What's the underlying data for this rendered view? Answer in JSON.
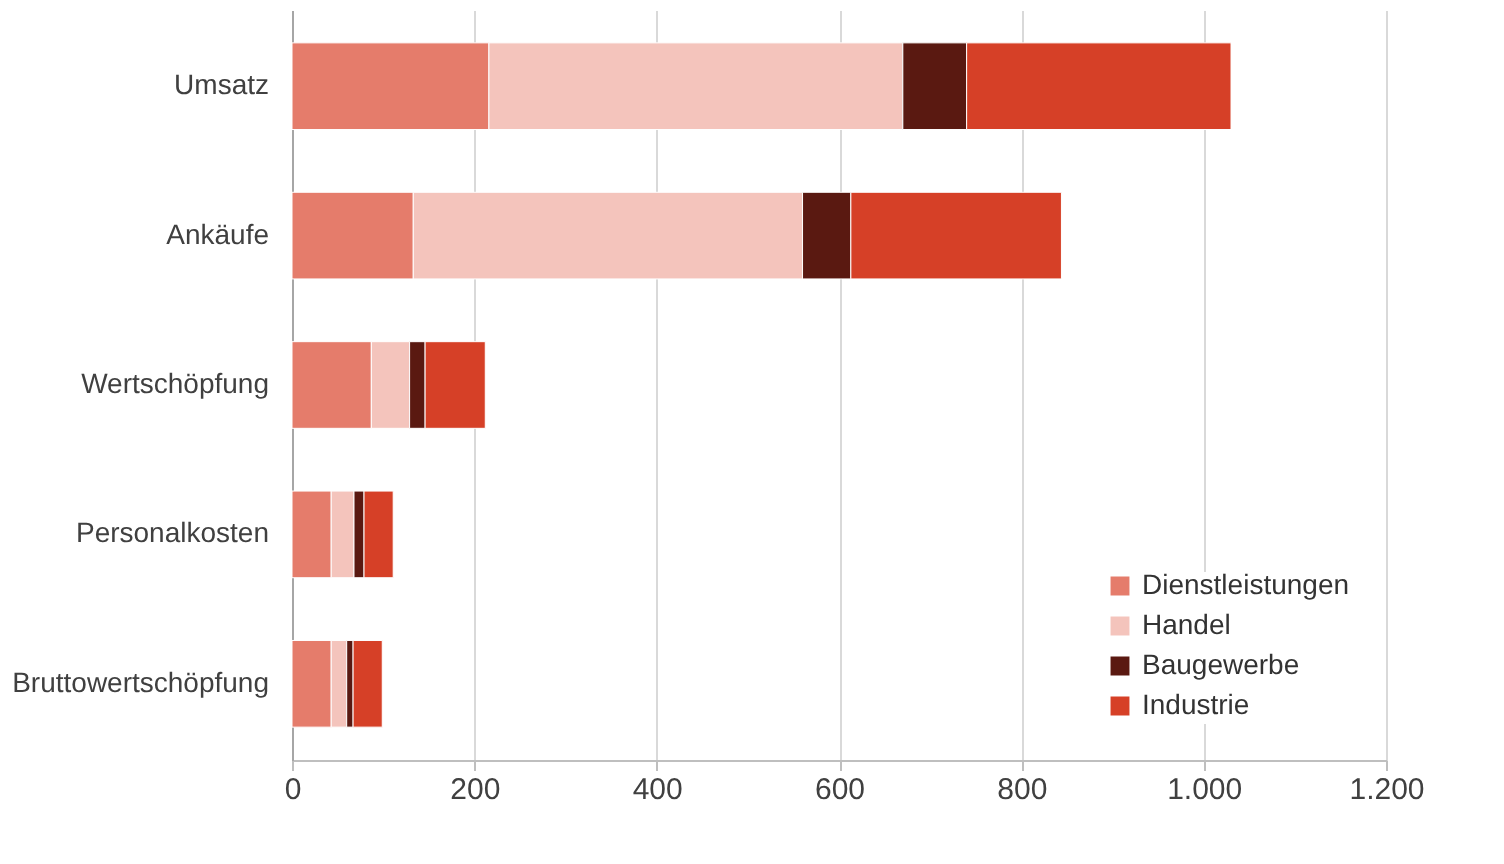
{
  "chart_data": {
    "type": "bar",
    "orientation": "horizontal",
    "stacked": true,
    "categories": [
      "Umsatz",
      "Ankäufe",
      "Wertschöpfung",
      "Personalkosten",
      "Bruttowertschöpfung"
    ],
    "series": [
      {
        "name": "Dienstleistungen",
        "color": "#e57c6b",
        "values": [
          216,
          133,
          87,
          43,
          43
        ]
      },
      {
        "name": "Handel",
        "color": "#f4c4bc",
        "values": [
          454,
          427,
          42,
          25,
          17
        ]
      },
      {
        "name": "Baugewerbe",
        "color": "#5a1911",
        "values": [
          70,
          53,
          17,
          11,
          7
        ]
      },
      {
        "name": "Industrie",
        "color": "#d64027",
        "values": [
          290,
          231,
          66,
          32,
          32
        ]
      }
    ],
    "xlim": [
      0,
      1200
    ],
    "xticks": [
      0,
      200,
      400,
      600,
      800,
      {
        "value": 1000,
        "label": "1.000"
      },
      {
        "value": 1200,
        "label": "1.200"
      }
    ],
    "grid": "x",
    "legend": "bottom right"
  }
}
